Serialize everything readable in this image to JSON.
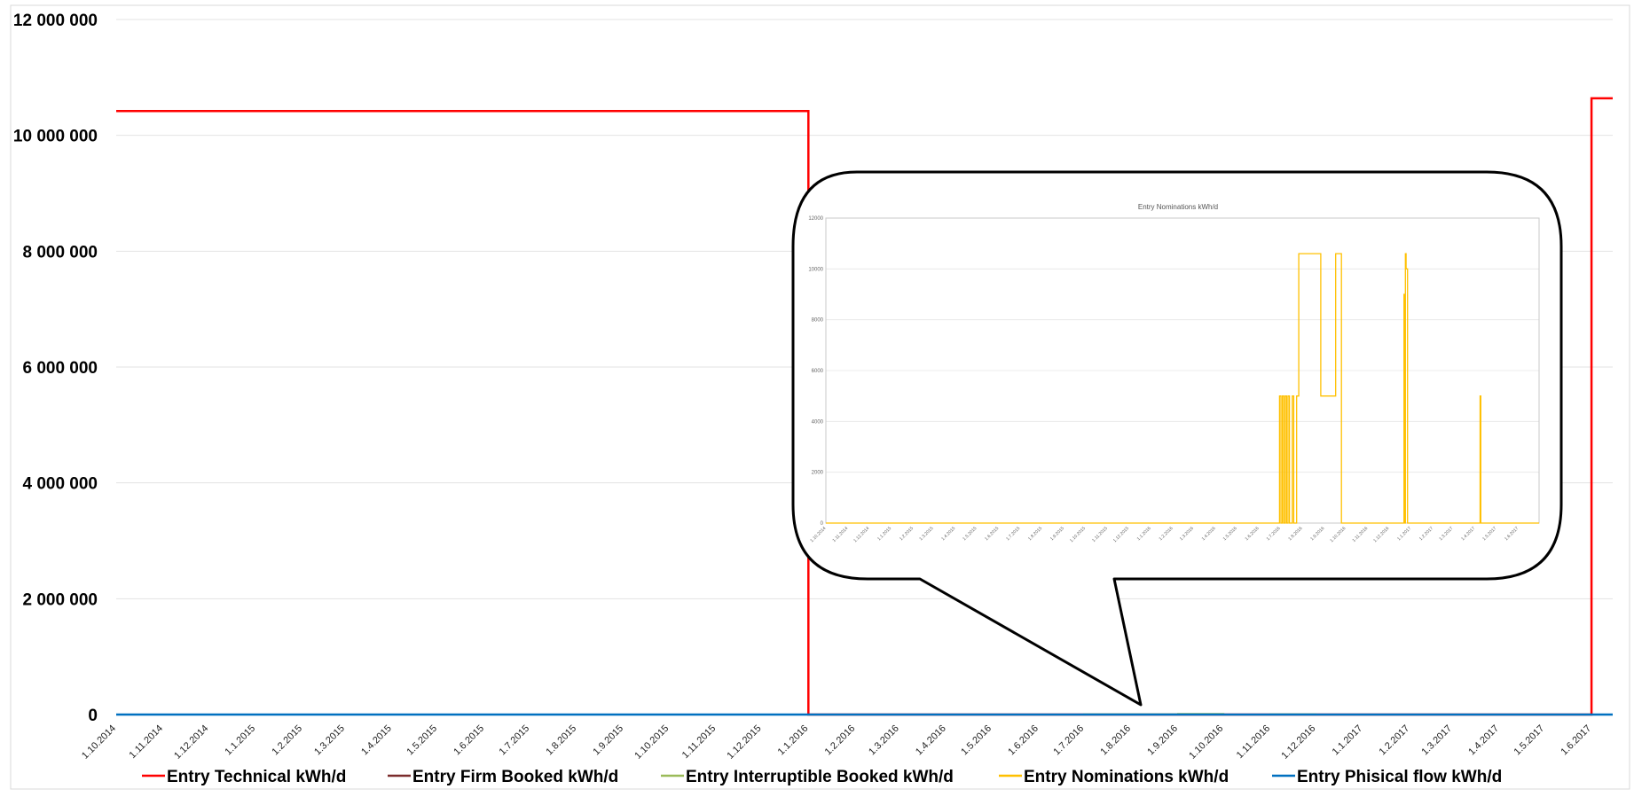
{
  "chart_data": [
    {
      "type": "line",
      "title": "",
      "xlabel": "",
      "ylabel": "",
      "x_ticks": [
        "1.10.2014",
        "1.11.2014",
        "1.12.2014",
        "1.1.2015",
        "1.2.2015",
        "1.3.2015",
        "1.4.2015",
        "1.5.2015",
        "1.6.2015",
        "1.7.2015",
        "1.8.2015",
        "1.9.2015",
        "1.10.2015",
        "1.11.2015",
        "1.12.2015",
        "1.1.2016",
        "1.2.2016",
        "1.3.2016",
        "1.4.2016",
        "1.5.2016",
        "1.6.2016",
        "1.7.2016",
        "1.8.2016",
        "1.9.2016",
        "1.10.2016",
        "1.11.2016",
        "1.12.2016",
        "1.1.2017",
        "1.2.2017",
        "1.3.2017",
        "1.4.2017",
        "1.5.2017",
        "1.6.2017"
      ],
      "y_ticks": [
        "0",
        "2 000 000",
        "4 000 000",
        "6 000 000",
        "8 000 000",
        "10 000 000",
        "12 000 000"
      ],
      "ylim": [
        0,
        12000000
      ],
      "grid": true,
      "legend_position": "bottom",
      "series": [
        {
          "name": "Entry Technical kWh/d",
          "color": "#ff0000",
          "points": [
            [
              "1.10.2014",
              10420000
            ],
            [
              "1.1.2016",
              10420000
            ],
            [
              "1.1.2016",
              0
            ],
            [
              "1.6.2017",
              0
            ],
            [
              "1.6.2017",
              10640000
            ],
            [
              "2017-06-15",
              10640000
            ]
          ]
        },
        {
          "name": "Entry Firm Booked kWh/d",
          "color": "#7b2c2c",
          "points": [
            [
              "1.10.2014",
              0
            ],
            [
              "2017-06-15",
              0
            ]
          ]
        },
        {
          "name": "Entry Interruptible Booked kWh/d",
          "color": "#9bbb59",
          "points": [
            [
              "1.10.2014",
              0
            ],
            [
              "1.7.2016",
              0
            ],
            [
              "1.7.2016",
              6000
            ],
            [
              "1.9.2016",
              6000
            ],
            [
              "1.9.2016",
              12000
            ],
            [
              "1.10.2016",
              12000
            ],
            [
              "1.10.2016",
              0
            ],
            [
              "1.11.2016",
              0
            ],
            [
              "1.11.2016",
              6000
            ],
            [
              "1.12.2016",
              6000
            ],
            [
              "1.12.2016",
              0
            ],
            [
              "2017-06-15",
              0
            ]
          ]
        },
        {
          "name": "Entry Nominations kWh/d",
          "color": "#ffc000",
          "points": [
            [
              "1.10.2014",
              0
            ],
            [
              "2017-06-15",
              0
            ]
          ]
        },
        {
          "name": "Entry Phisical flow kWh/d",
          "color": "#0070c0",
          "points": [
            [
              "1.10.2014",
              0
            ],
            [
              "2017-06-15",
              0
            ]
          ]
        }
      ]
    },
    {
      "type": "line",
      "title": "Entry Nominations kWh/d",
      "ylim": [
        0,
        12000
      ],
      "y_ticks": [
        "0",
        "2000",
        "4000",
        "6000",
        "8000",
        "10000",
        "12000"
      ],
      "x_ticks": [
        "1.10.2014",
        "1.11.2014",
        "1.12.2014",
        "1.1.2015",
        "1.2.2015",
        "1.3.2015",
        "1.4.2015",
        "1.5.2015",
        "1.6.2015",
        "1.7.2015",
        "1.8.2015",
        "1.9.2015",
        "1.10.2015",
        "1.11.2015",
        "1.12.2015",
        "1.1.2016",
        "1.2.2016",
        "1.3.2016",
        "1.4.2016",
        "1.5.2016",
        "1.6.2016",
        "1.7.2016",
        "1.8.2016",
        "1.9.2016",
        "1.10.2016",
        "1.11.2016",
        "1.12.2016",
        "1.1.2017",
        "1.2.2017",
        "1.3.2017",
        "1.4.2017",
        "1.5.2017",
        "1.6.2017"
      ],
      "grid": true,
      "series": [
        {
          "color": "#ffc000",
          "points": [
            [
              "1.10.2014",
              0
            ],
            [
              "2016-06-30",
              0
            ],
            [
              "2016-06-30",
              5000
            ],
            [
              "2016-07-02",
              5000
            ],
            [
              "2016-07-02",
              0
            ],
            [
              "2016-07-04",
              0
            ],
            [
              "2016-07-04",
              5000
            ],
            [
              "2016-07-06",
              5000
            ],
            [
              "2016-07-06",
              0
            ],
            [
              "2016-07-08",
              0
            ],
            [
              "2016-07-08",
              5000
            ],
            [
              "2016-07-10",
              5000
            ],
            [
              "2016-07-10",
              0
            ],
            [
              "2016-07-12",
              0
            ],
            [
              "2016-07-12",
              5000
            ],
            [
              "2016-07-14",
              5000
            ],
            [
              "2016-07-14",
              0
            ],
            [
              "2016-07-18",
              0
            ],
            [
              "2016-07-18",
              5000
            ],
            [
              "2016-07-20",
              5000
            ],
            [
              "2016-07-20",
              0
            ],
            [
              "2016-07-24",
              0
            ],
            [
              "2016-07-24",
              5000
            ],
            [
              "2016-07-27",
              5000
            ],
            [
              "2016-07-27",
              10600
            ],
            [
              "2016-08-27",
              10600
            ],
            [
              "2016-08-27",
              5000
            ],
            [
              "2016-09-17",
              5000
            ],
            [
              "2016-09-17",
              10600
            ],
            [
              "2016-09-25",
              10600
            ],
            [
              "2016-09-25",
              0
            ],
            [
              "2016-12-22",
              0
            ],
            [
              "2016-12-22",
              9000
            ],
            [
              "2016-12-23",
              9000
            ],
            [
              "2016-12-23",
              0
            ],
            [
              "2016-12-24",
              0
            ],
            [
              "2016-12-24",
              10600
            ],
            [
              "2016-12-25",
              10600
            ],
            [
              "2016-12-25",
              10000
            ],
            [
              "2016-12-27",
              10000
            ],
            [
              "2016-12-27",
              0
            ],
            [
              "2017-04-08",
              0
            ],
            [
              "2017-04-08",
              5000
            ],
            [
              "2017-04-09",
              5000
            ],
            [
              "2017-04-09",
              0
            ],
            [
              "2017-06-30",
              0
            ]
          ]
        }
      ]
    }
  ]
}
